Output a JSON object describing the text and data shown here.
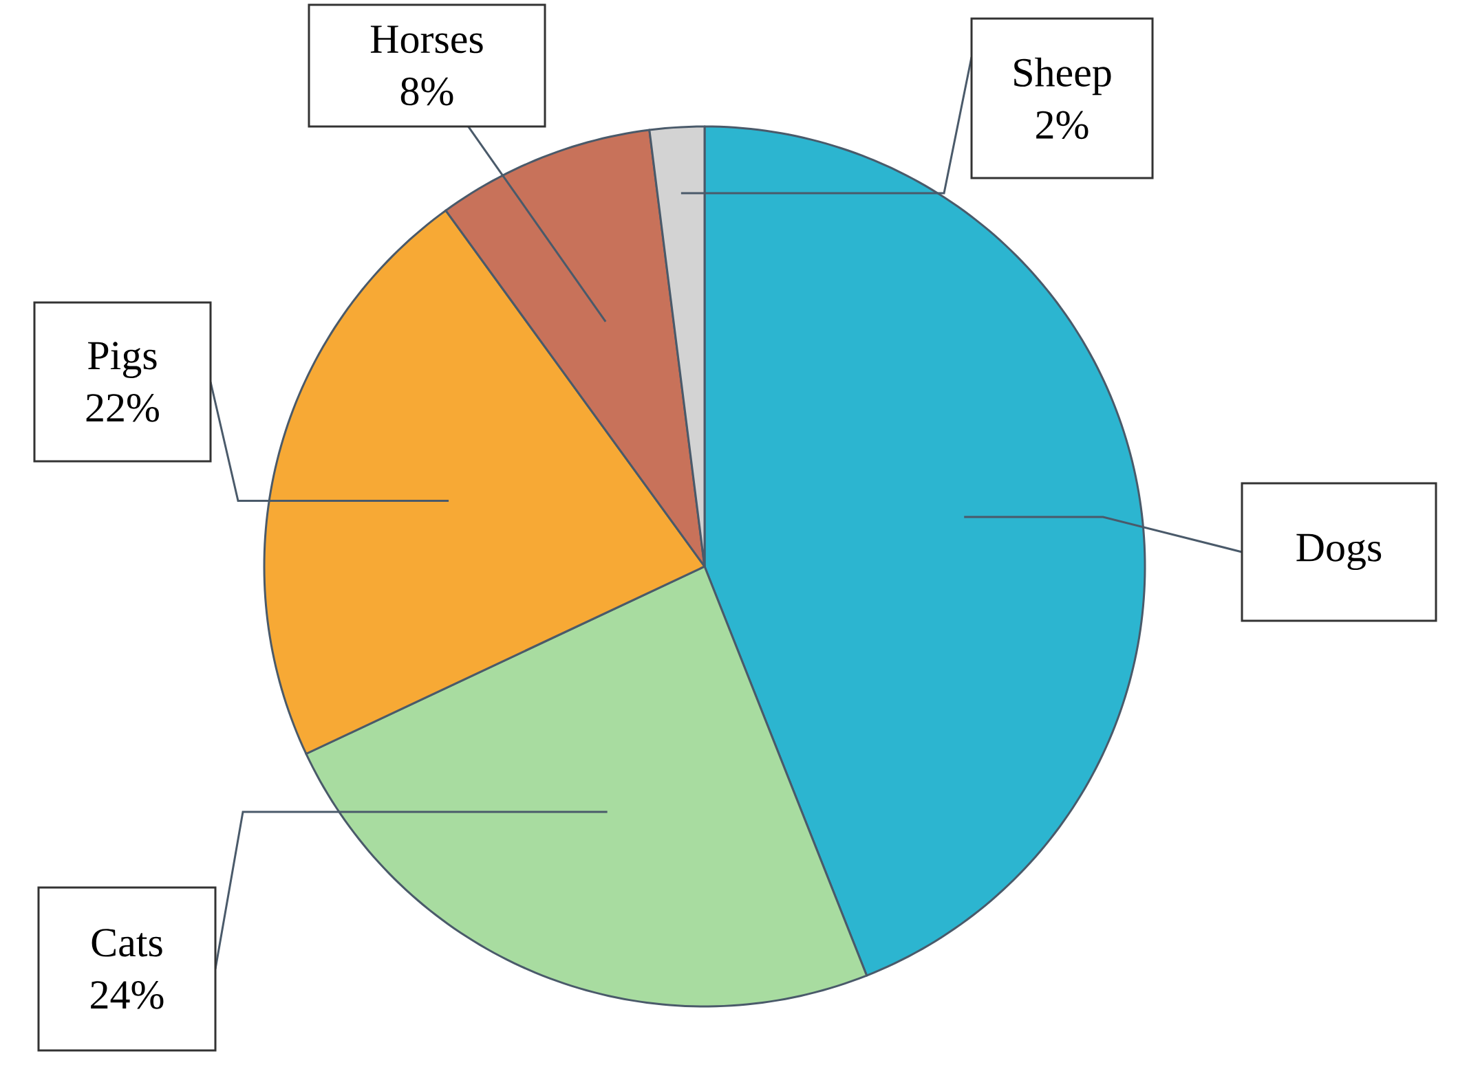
{
  "chart_data": {
    "type": "pie",
    "categories": [
      "Dogs",
      "Cats",
      "Pigs",
      "Horses",
      "Sheep"
    ],
    "values": [
      44,
      24,
      22,
      8,
      2
    ],
    "value_labels": [
      null,
      "24%",
      "22%",
      "8%",
      "2%"
    ],
    "colors": [
      "#2cb5d0",
      "#a8dca0",
      "#f7a935",
      "#c8725a",
      "#d3d3d3"
    ]
  }
}
